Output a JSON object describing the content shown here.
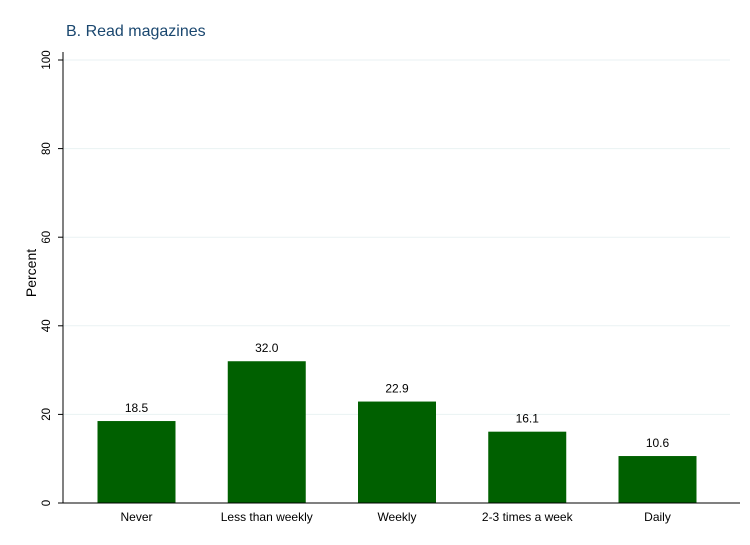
{
  "chart_data": {
    "type": "bar",
    "title": "B. Read magazines",
    "xlabel": "",
    "ylabel": "Percent",
    "categories": [
      "Never",
      "Less than weekly",
      "Weekly",
      "2-3 times a week",
      "Daily"
    ],
    "values": [
      18.5,
      32.0,
      22.9,
      16.1,
      10.6
    ],
    "value_labels": [
      "18.5",
      "32.0",
      "22.9",
      "16.1",
      "10.6"
    ],
    "ylim": [
      0,
      100
    ],
    "yticks": [
      0,
      20,
      40,
      60,
      80,
      100
    ],
    "ytick_labels": [
      "0",
      "20",
      "40",
      "60",
      "80",
      "100"
    ],
    "grid": true,
    "legend": "none",
    "bar_color": "#006000",
    "title_color": "#1a476f"
  }
}
